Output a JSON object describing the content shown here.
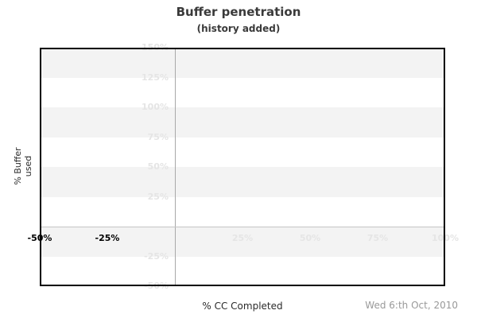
{
  "header": {
    "title": "Buffer penetration",
    "subtitle": "(history added)"
  },
  "footer": {
    "date": "Wed 6:th Oct, 2010"
  },
  "chart_data": {
    "type": "line",
    "title": "Buffer penetration",
    "subtitle": "(history added)",
    "xlabel": "% CC Completed",
    "ylabel": "% Buffer used",
    "xlim": [
      -50,
      100
    ],
    "ylim": [
      -50,
      150
    ],
    "x_ticks": [
      {
        "value": -50,
        "label": "-50%",
        "emphasis": true
      },
      {
        "value": -25,
        "label": "-25%",
        "emphasis": true
      },
      {
        "value": 25,
        "label": "25%",
        "emphasis": false
      },
      {
        "value": 50,
        "label": "50%",
        "emphasis": false
      },
      {
        "value": 75,
        "label": "75%",
        "emphasis": false
      },
      {
        "value": 100,
        "label": "100%",
        "emphasis": false
      }
    ],
    "y_ticks": [
      {
        "value": 150,
        "label": "150%"
      },
      {
        "value": 125,
        "label": "125%"
      },
      {
        "value": 100,
        "label": "100%"
      },
      {
        "value": 75,
        "label": "75%"
      },
      {
        "value": 50,
        "label": "50%"
      },
      {
        "value": 25,
        "label": "25%"
      },
      {
        "value": -25,
        "label": "-25%"
      },
      {
        "value": -50,
        "label": "-50%"
      }
    ],
    "stripe_bands": [
      [
        150,
        125
      ],
      [
        100,
        75
      ],
      [
        50,
        25
      ],
      [
        0,
        -25
      ]
    ],
    "axis_cross": {
      "x": 0,
      "y": 0
    },
    "series": [],
    "legend": null,
    "grid": "horizontal-stripes"
  },
  "colors": {
    "background": "#ffffff",
    "title": "#3a3a3a",
    "stripe": "#f3f3f3",
    "plot_border": "#000000",
    "zero_x_line": "#a8a8a8",
    "zero_y_line": "#c4c4c4",
    "tick_faint": "#e5e5e5",
    "tick_emphasis": "#000000",
    "axis_title": "#2a2a2a",
    "date": "#999999"
  }
}
